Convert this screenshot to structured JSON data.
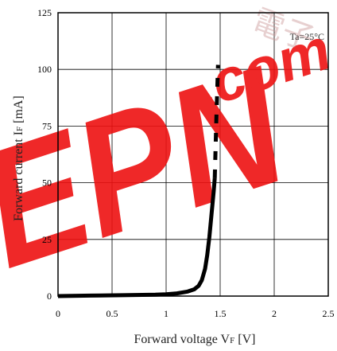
{
  "chart_data": {
    "type": "line",
    "xlabel_main": "Forward voltage V",
    "xlabel_sub": "F",
    "xlabel_unit": " [V]",
    "ylabel_main": "Forward current I",
    "ylabel_sub": "F",
    "ylabel_unit": " [mA]",
    "xlim": [
      0,
      2.5
    ],
    "ylim": [
      0,
      125
    ],
    "x_ticks": [
      0,
      0.5,
      1,
      1.5,
      2,
      2.5
    ],
    "x_tick_labels": [
      "0",
      "0.5",
      "1",
      "1.5",
      "2",
      "2.5"
    ],
    "y_ticks": [
      0,
      25,
      50,
      75,
      100,
      125
    ],
    "y_tick_labels": [
      "0",
      "25",
      "50",
      "75",
      "100",
      "125"
    ],
    "grid": true,
    "annotation": "Ta=25°C",
    "series": [
      {
        "style": "solid",
        "color": "#000000",
        "x": [
          0,
          0.3,
          0.6,
          0.9,
          1.0,
          1.1,
          1.2,
          1.26,
          1.3,
          1.33,
          1.36,
          1.38,
          1.4,
          1.42,
          1.44,
          1.45
        ],
        "y": [
          0,
          0.2,
          0.4,
          0.6,
          0.8,
          1.2,
          2.0,
          3.0,
          4.5,
          7,
          12,
          18,
          26,
          36,
          46,
          52
        ]
      },
      {
        "style": "dashed",
        "color": "#000000",
        "x": [
          1.45,
          1.465,
          1.48
        ],
        "y": [
          52,
          78,
          102
        ]
      }
    ]
  },
  "watermark": {
    "logo_text": "EPN",
    "logo_suffix": ".com",
    "cjk_text": "電子",
    "logo_color": "#ee1111"
  }
}
